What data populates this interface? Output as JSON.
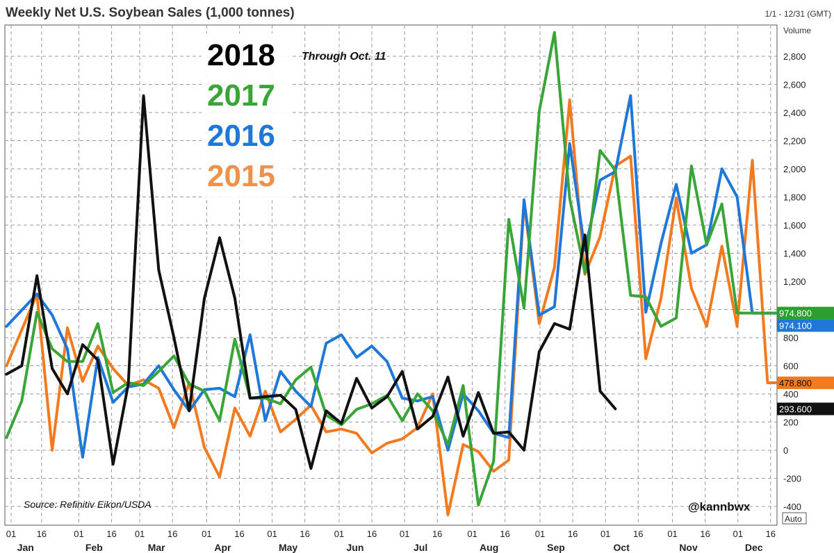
{
  "header": {
    "title": "Weekly Net U.S. Soybean Sales (1,000 tonnes)",
    "date_range": "1/1 - 12/31 (GMT)",
    "volume_label": "Volume",
    "auto_label": "Auto"
  },
  "annotations": {
    "through": "Through Oct. 11",
    "source": "Source: Refinitiv Eikon/USDA",
    "handle": "@kannbwx"
  },
  "chart_data": {
    "type": "line",
    "title": "Weekly Net U.S. Soybean Sales (1,000 tonnes)",
    "xlabel": "",
    "ylabel": "Volume",
    "ylim": [
      -500,
      3000
    ],
    "yticks": [
      -400,
      -200,
      0,
      200,
      400,
      600,
      800,
      1000,
      1200,
      1400,
      1600,
      1800,
      2000,
      2200,
      2400,
      2600,
      2800
    ],
    "ytick_labels": [
      "-400",
      "-200",
      "0",
      "200",
      "400",
      "600",
      "800",
      "1,000",
      "1,200",
      "1,400",
      "1,600",
      "1,800",
      "2,000",
      "2,200",
      "2,400",
      "2,600",
      "2,800"
    ],
    "x_axis": {
      "unit": "week of year",
      "xlim": [
        0.7,
        53
      ],
      "day_ticks": [
        {
          "week": 1,
          "label": "01"
        },
        {
          "week": 3,
          "label": "16"
        },
        {
          "week": 5.45,
          "label": "01"
        },
        {
          "week": 7.6,
          "label": "16"
        },
        {
          "week": 9.45,
          "label": "01"
        },
        {
          "week": 11.6,
          "label": "16"
        },
        {
          "week": 13.85,
          "label": "01"
        },
        {
          "week": 16,
          "label": "16"
        },
        {
          "week": 18.15,
          "label": "01"
        },
        {
          "week": 20.3,
          "label": "16"
        },
        {
          "week": 22.55,
          "label": "01"
        },
        {
          "week": 24.7,
          "label": "16"
        },
        {
          "week": 26.85,
          "label": "01"
        },
        {
          "week": 29,
          "label": "16"
        },
        {
          "week": 31.3,
          "label": "01"
        },
        {
          "week": 33.45,
          "label": "16"
        },
        {
          "week": 35.75,
          "label": "01"
        },
        {
          "week": 37.9,
          "label": "16"
        },
        {
          "week": 40.05,
          "label": "01"
        },
        {
          "week": 42.2,
          "label": "16"
        },
        {
          "week": 44.45,
          "label": "01"
        },
        {
          "week": 46.6,
          "label": "16"
        },
        {
          "week": 48.75,
          "label": "01"
        },
        {
          "week": 50.9,
          "label": "16"
        }
      ],
      "months": [
        {
          "week": 1.95,
          "label": "Jan"
        },
        {
          "week": 6.45,
          "label": "Feb"
        },
        {
          "week": 10.55,
          "label": "Mar"
        },
        {
          "week": 14.9,
          "label": "Apr"
        },
        {
          "week": 19.2,
          "label": "May"
        },
        {
          "week": 23.6,
          "label": "Jun"
        },
        {
          "week": 27.9,
          "label": "Jul"
        },
        {
          "week": 32.4,
          "label": "Aug"
        },
        {
          "week": 36.8,
          "label": "Sep"
        },
        {
          "week": 41.1,
          "label": "Oct"
        },
        {
          "week": 45.5,
          "label": "Nov"
        },
        {
          "week": 49.8,
          "label": "Dec"
        }
      ]
    },
    "series": [
      {
        "name": "2015",
        "color": "#f47a20",
        "x": [
          0.7,
          2.7,
          3.7,
          4.7,
          5.7,
          6.7,
          7.7,
          8.7,
          9.7,
          10.7,
          11.7,
          12.7,
          13.7,
          14.7,
          15.7,
          16.7,
          17.7,
          18.7,
          19.7,
          20.7,
          21.7,
          22.7,
          23.7,
          24.7,
          25.7,
          26.7,
          27.7,
          28.7,
          29.7,
          30.7,
          31.7,
          32.7,
          33.7,
          34.7,
          35.7,
          36.7,
          37.7,
          38.7,
          39.7,
          40.7,
          41.7,
          42.7,
          43.7,
          44.7,
          45.7,
          46.7,
          47.7,
          48.7,
          49.7,
          50.7,
          51.7,
          52.7
        ],
        "y": [
          600,
          1110,
          0,
          870,
          490,
          740,
          580,
          460,
          500,
          440,
          160,
          480,
          20,
          -190,
          300,
          100,
          420,
          130,
          220,
          320,
          130,
          150,
          120,
          -20,
          50,
          80,
          160,
          400,
          -460,
          40,
          -10,
          -150,
          -70,
          1760,
          900,
          1300,
          2490,
          1250,
          1520,
          2020,
          2090,
          650,
          1080,
          1790,
          1150,
          880,
          1450,
          880,
          2060,
          478.8,
          478.8,
          478.8
        ]
      },
      {
        "name": "2016",
        "color": "#1f77d8",
        "x": [
          0.7,
          2.7,
          3.7,
          4.7,
          5.7,
          6.7,
          7.7,
          8.7,
          9.7,
          10.7,
          11.7,
          12.7,
          13.7,
          14.7,
          15.7,
          16.7,
          17.7,
          18.7,
          19.7,
          20.7,
          21.7,
          22.7,
          23.7,
          24.7,
          25.7,
          26.7,
          27.7,
          28.7,
          29.7,
          30.7,
          31.7,
          32.7,
          33.7,
          34.7,
          35.7,
          36.7,
          37.7,
          38.7,
          39.7,
          40.7,
          41.7,
          42.7,
          43.7,
          44.7,
          45.7,
          46.7,
          47.7,
          48.7,
          49.7,
          50.7,
          51.7
        ],
        "y": [
          880,
          1110,
          960,
          720,
          -50,
          660,
          340,
          450,
          470,
          600,
          430,
          280,
          430,
          440,
          380,
          820,
          210,
          560,
          420,
          310,
          760,
          820,
          660,
          740,
          630,
          370,
          350,
          380,
          0,
          400,
          280,
          120,
          90,
          1780,
          960,
          1020,
          2180,
          1420,
          1920,
          1980,
          2520,
          980,
          1470,
          1890,
          1400,
          1460,
          2000,
          1800,
          974.1,
          974.1,
          974.1
        ]
      },
      {
        "name": "2017",
        "color": "#3aa537",
        "x": [
          0.7,
          1.7,
          2.7,
          3.7,
          4.7,
          5.7,
          6.7,
          7.7,
          8.7,
          9.7,
          10.7,
          11.7,
          12.7,
          13.7,
          14.7,
          15.7,
          16.7,
          17.7,
          18.7,
          19.7,
          20.7,
          21.7,
          22.7,
          23.7,
          24.7,
          25.7,
          26.7,
          27.7,
          28.7,
          29.7,
          30.7,
          31.7,
          32.7,
          33.7,
          34.7,
          35.7,
          36.7,
          37.7,
          38.7,
          39.7,
          40.7,
          41.7,
          42.7,
          43.7,
          44.7,
          45.7,
          46.7,
          47.7,
          48.7,
          49.7,
          50.7,
          51.7
        ],
        "y": [
          90,
          350,
          980,
          720,
          630,
          630,
          900,
          410,
          480,
          460,
          560,
          670,
          470,
          420,
          210,
          790,
          370,
          370,
          330,
          500,
          590,
          250,
          180,
          290,
          330,
          390,
          210,
          400,
          280,
          40,
          460,
          -390,
          -80,
          1640,
          1010,
          2410,
          2970,
          1790,
          1260,
          2130,
          1990,
          1100,
          1090,
          880,
          940,
          2020,
          1460,
          1750,
          974.8,
          974.8,
          974.8,
          974.8
        ]
      },
      {
        "name": "2018",
        "color": "#111111",
        "x": [
          0.7,
          1.7,
          2.7,
          3.7,
          4.7,
          5.7,
          6.7,
          7.7,
          8.7,
          9.7,
          10.7,
          11.7,
          12.7,
          13.7,
          14.7,
          15.7,
          16.7,
          17.7,
          18.7,
          19.7,
          20.7,
          21.7,
          22.7,
          23.7,
          24.7,
          25.7,
          26.7,
          27.7,
          28.7,
          29.7,
          30.7,
          31.7,
          32.7,
          33.7,
          34.7,
          35.7,
          36.7,
          37.7,
          38.7,
          39.7,
          40.7
        ],
        "y": [
          540,
          600,
          1240,
          580,
          400,
          750,
          640,
          -100,
          470,
          2520,
          1280,
          800,
          280,
          1080,
          1510,
          1080,
          370,
          380,
          390,
          290,
          -130,
          280,
          190,
          510,
          300,
          380,
          560,
          150,
          240,
          520,
          100,
          410,
          120,
          130,
          0,
          700,
          900,
          860,
          1530,
          420,
          293.6
        ]
      }
    ],
    "legend": [
      {
        "name": "2018",
        "color": "#000000"
      },
      {
        "name": "2017",
        "color": "#3aa537"
      },
      {
        "name": "2016",
        "color": "#1f77d8"
      },
      {
        "name": "2015",
        "color": "#f0914a"
      }
    ],
    "last_value_labels": [
      {
        "series": "2017",
        "value": 974.8,
        "text": "974.800",
        "color": "#2ca02c",
        "text_color": "#ffffff"
      },
      {
        "series": "2016",
        "value": 974.1,
        "text": "974.100",
        "color": "#1f77d8",
        "text_color": "#ffffff"
      },
      {
        "series": "2015",
        "value": 478.8,
        "text": "478.800",
        "color": "#f47a20",
        "text_color": "#111111"
      },
      {
        "series": "2018",
        "value": 293.6,
        "text": "293.600",
        "color": "#111111",
        "text_color": "#ffffff"
      }
    ],
    "grid": true,
    "legend_position": "top-left"
  }
}
